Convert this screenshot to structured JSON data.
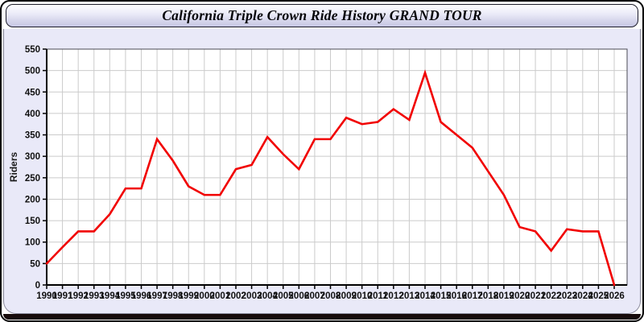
{
  "window": {
    "title": "California Triple Crown Ride History GRAND TOUR"
  },
  "chart_data": {
    "type": "line",
    "title": "California Triple Crown Ride History GRAND TOUR",
    "xlabel": "",
    "ylabel": "Riders",
    "ylim": [
      0,
      550
    ],
    "ytick_step": 50,
    "grid": true,
    "legend": false,
    "x": [
      1990,
      1991,
      1992,
      1993,
      1994,
      1995,
      1996,
      1997,
      1998,
      1999,
      2000,
      2001,
      2002,
      2003,
      2004,
      2005,
      2006,
      2007,
      2008,
      2009,
      2010,
      2011,
      2012,
      2013,
      2014,
      2015,
      2016,
      2017,
      2018,
      2019,
      2020,
      2021,
      2022,
      2023,
      2024,
      2025,
      2026
    ],
    "series": [
      {
        "name": "Riders",
        "values": [
          50,
          88,
          125,
          125,
          165,
          225,
          225,
          340,
          290,
          230,
          210,
          210,
          270,
          280,
          345,
          305,
          270,
          340,
          340,
          390,
          375,
          380,
          410,
          385,
          495,
          380,
          350,
          320,
          265,
          210,
          135,
          125,
          80,
          130,
          125,
          125,
          0
        ]
      }
    ]
  },
  "colors": {
    "line": "#f10000",
    "panel_bg": "#e9e9f8",
    "plot_bg": "#ffffff",
    "gridline": "#cbcbcb",
    "plot_border": "#4a4a55",
    "axis": "#000000",
    "tick_text": "#111111"
  }
}
